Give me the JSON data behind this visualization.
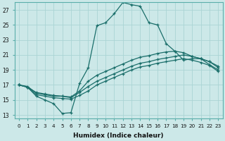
{
  "xlabel": "Humidex (Indice chaleur)",
  "bg_color": "#cce8e8",
  "grid_color": "#aad4d4",
  "line_color": "#1a6e6a",
  "xlim": [
    -0.5,
    23.5
  ],
  "ylim": [
    12.5,
    28.0
  ],
  "xticks": [
    0,
    1,
    2,
    3,
    4,
    5,
    6,
    7,
    8,
    9,
    10,
    11,
    12,
    13,
    14,
    15,
    16,
    17,
    18,
    19,
    20,
    21,
    22,
    23
  ],
  "yticks": [
    13,
    15,
    17,
    19,
    21,
    23,
    25,
    27
  ],
  "series": [
    [
      17.0,
      16.7,
      15.5,
      15.0,
      14.5,
      13.2,
      13.3,
      17.2,
      19.3,
      24.9,
      25.3,
      26.5,
      28.0,
      27.7,
      27.5,
      25.3,
      25.0,
      22.5,
      21.5,
      20.3,
      20.5,
      20.5,
      19.7,
      19.0
    ],
    [
      17.0,
      16.8,
      15.9,
      15.7,
      15.5,
      15.5,
      15.4,
      16.2,
      17.5,
      18.3,
      18.8,
      19.3,
      19.8,
      20.3,
      20.7,
      20.9,
      21.2,
      21.4,
      21.5,
      21.3,
      20.8,
      20.5,
      20.1,
      19.5
    ],
    [
      17.0,
      16.7,
      16.0,
      15.8,
      15.6,
      15.5,
      15.3,
      16.0,
      16.8,
      17.5,
      18.0,
      18.5,
      19.0,
      19.5,
      19.9,
      20.1,
      20.4,
      20.6,
      20.8,
      21.0,
      20.8,
      20.5,
      20.1,
      19.3
    ],
    [
      17.0,
      16.7,
      15.7,
      15.5,
      15.3,
      15.2,
      15.1,
      15.6,
      16.2,
      17.0,
      17.5,
      18.0,
      18.5,
      19.0,
      19.4,
      19.6,
      19.9,
      20.1,
      20.3,
      20.5,
      20.3,
      20.0,
      19.6,
      18.8
    ]
  ]
}
